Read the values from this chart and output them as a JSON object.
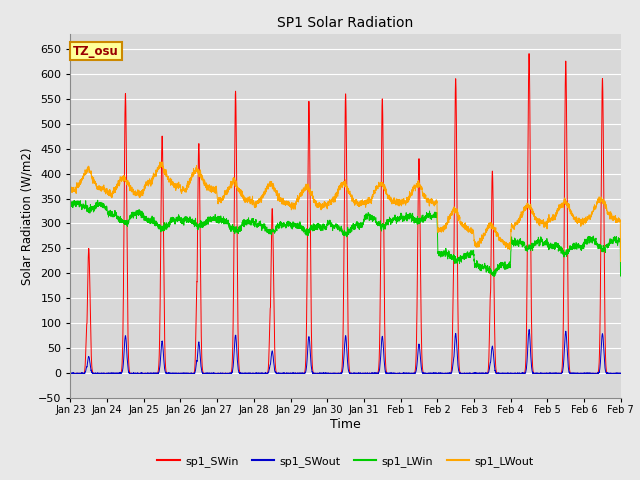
{
  "title": "SP1 Solar Radiation",
  "xlabel": "Time",
  "ylabel": "Solar Radiation (W/m2)",
  "ylim": [
    -50,
    680
  ],
  "tz_label": "TZ_osu",
  "colors": {
    "SWin": "#FF0000",
    "SWout": "#0000CC",
    "LWin": "#00CC00",
    "LWout": "#FFA500"
  },
  "bg_color": "#E8E8E8",
  "plot_bg": "#D8D8D8",
  "tick_labels": [
    "Jan 23",
    "Jan 24",
    "Jan 25",
    "Jan 26",
    "Jan 27",
    "Jan 28",
    "Jan 29",
    "Jan 30",
    "Jan 31",
    "Feb 1",
    "Feb 2",
    "Feb 3",
    "Feb 4",
    "Feb 5",
    "Feb 6",
    "Feb 7"
  ],
  "yticks": [
    -50,
    0,
    50,
    100,
    150,
    200,
    250,
    300,
    350,
    400,
    450,
    500,
    550,
    600,
    650
  ],
  "sw_peaks": [
    250,
    560,
    475,
    460,
    565,
    330,
    545,
    560,
    550,
    430,
    590,
    405,
    640,
    625,
    590
  ],
  "lwin_base": [
    335,
    320,
    310,
    305,
    305,
    300,
    295,
    300,
    310,
    315,
    240,
    215,
    265,
    255,
    265
  ],
  "lwout_base": [
    365,
    360,
    375,
    365,
    345,
    340,
    335,
    340,
    340,
    340,
    285,
    255,
    295,
    305,
    305
  ]
}
